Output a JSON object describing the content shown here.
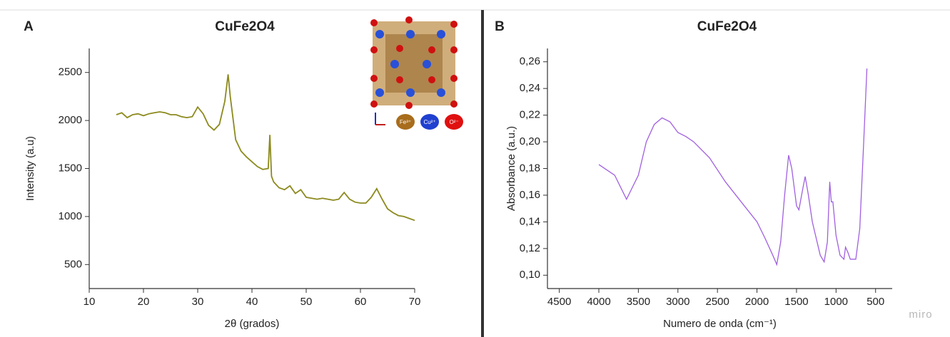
{
  "chart_data": [
    {
      "type": "line",
      "panel_label": "A",
      "title": "CuFe2O4",
      "xlabel": "2θ (grados)",
      "ylabel": "Intensity (a.u)",
      "xlim": [
        10,
        70
      ],
      "xticks": [
        10,
        20,
        30,
        40,
        50,
        60,
        70
      ],
      "ylim": [
        250,
        2750
      ],
      "yticks": [
        500,
        1000,
        1500,
        2000,
        2500
      ],
      "inset_legend": [
        "Fe³⁺",
        "Cu²⁺",
        "O²⁻"
      ],
      "series": [
        {
          "color": "#8c8a1e",
          "x": [
            15,
            16,
            17,
            18,
            19,
            20,
            21,
            22,
            23,
            24,
            25,
            26,
            27,
            28,
            29,
            30,
            31,
            32,
            33,
            34,
            35,
            35.6,
            36,
            37,
            38,
            39,
            40,
            41,
            42,
            43,
            43.3,
            43.6,
            44,
            45,
            46,
            47,
            48,
            49,
            50,
            51,
            52,
            53,
            54,
            55,
            56,
            57,
            58,
            59,
            60,
            61,
            62,
            63,
            64,
            65,
            66,
            67,
            68,
            69,
            70
          ],
          "values": [
            2060,
            2080,
            2030,
            2060,
            2070,
            2050,
            2070,
            2080,
            2090,
            2080,
            2060,
            2060,
            2040,
            2030,
            2040,
            2140,
            2070,
            1950,
            1900,
            1960,
            2200,
            2480,
            2250,
            1800,
            1680,
            1620,
            1570,
            1520,
            1490,
            1500,
            1850,
            1420,
            1360,
            1300,
            1280,
            1320,
            1240,
            1280,
            1200,
            1190,
            1180,
            1190,
            1180,
            1170,
            1180,
            1250,
            1180,
            1150,
            1140,
            1140,
            1200,
            1290,
            1180,
            1080,
            1040,
            1010,
            1000,
            980,
            960
          ]
        }
      ]
    },
    {
      "type": "line",
      "panel_label": "B",
      "title": "CuFe2O4",
      "xlabel": "Numero de onda (cm⁻¹)",
      "ylabel": "Absorbance (a.u.)",
      "xlim": [
        4650,
        290
      ],
      "xticks": [
        4500,
        4000,
        3500,
        3000,
        2500,
        2000,
        1500,
        1000,
        500
      ],
      "ylim": [
        0.09,
        0.27
      ],
      "yticks": [
        {
          "value": 0.1,
          "label": "0,10"
        },
        {
          "value": 0.12,
          "label": "0,12"
        },
        {
          "value": 0.14,
          "label": "0,14"
        },
        {
          "value": 0.16,
          "label": "0,16"
        },
        {
          "value": 0.18,
          "label": "0,18"
        },
        {
          "value": 0.2,
          "label": "0,20"
        },
        {
          "value": 0.22,
          "label": "0,22"
        },
        {
          "value": 0.24,
          "label": "0,24"
        },
        {
          "value": 0.26,
          "label": "0,26"
        }
      ],
      "series": [
        {
          "color": "#a060e0",
          "x": [
            4000,
            3800,
            3650,
            3500,
            3400,
            3300,
            3200,
            3100,
            3000,
            2900,
            2800,
            2600,
            2400,
            2200,
            2000,
            1900,
            1800,
            1750,
            1700,
            1650,
            1600,
            1560,
            1500,
            1470,
            1420,
            1390,
            1350,
            1300,
            1200,
            1150,
            1110,
            1080,
            1060,
            1040,
            1000,
            950,
            900,
            880,
            850,
            820,
            750,
            700,
            650,
            610
          ],
          "values": [
            0.183,
            0.175,
            0.157,
            0.175,
            0.2,
            0.213,
            0.218,
            0.215,
            0.207,
            0.204,
            0.2,
            0.188,
            0.17,
            0.155,
            0.14,
            0.128,
            0.115,
            0.108,
            0.125,
            0.16,
            0.19,
            0.18,
            0.152,
            0.149,
            0.165,
            0.174,
            0.16,
            0.14,
            0.115,
            0.11,
            0.125,
            0.17,
            0.155,
            0.155,
            0.13,
            0.115,
            0.112,
            0.121,
            0.117,
            0.112,
            0.112,
            0.135,
            0.2,
            0.255
          ]
        }
      ]
    }
  ],
  "watermark": "miro"
}
